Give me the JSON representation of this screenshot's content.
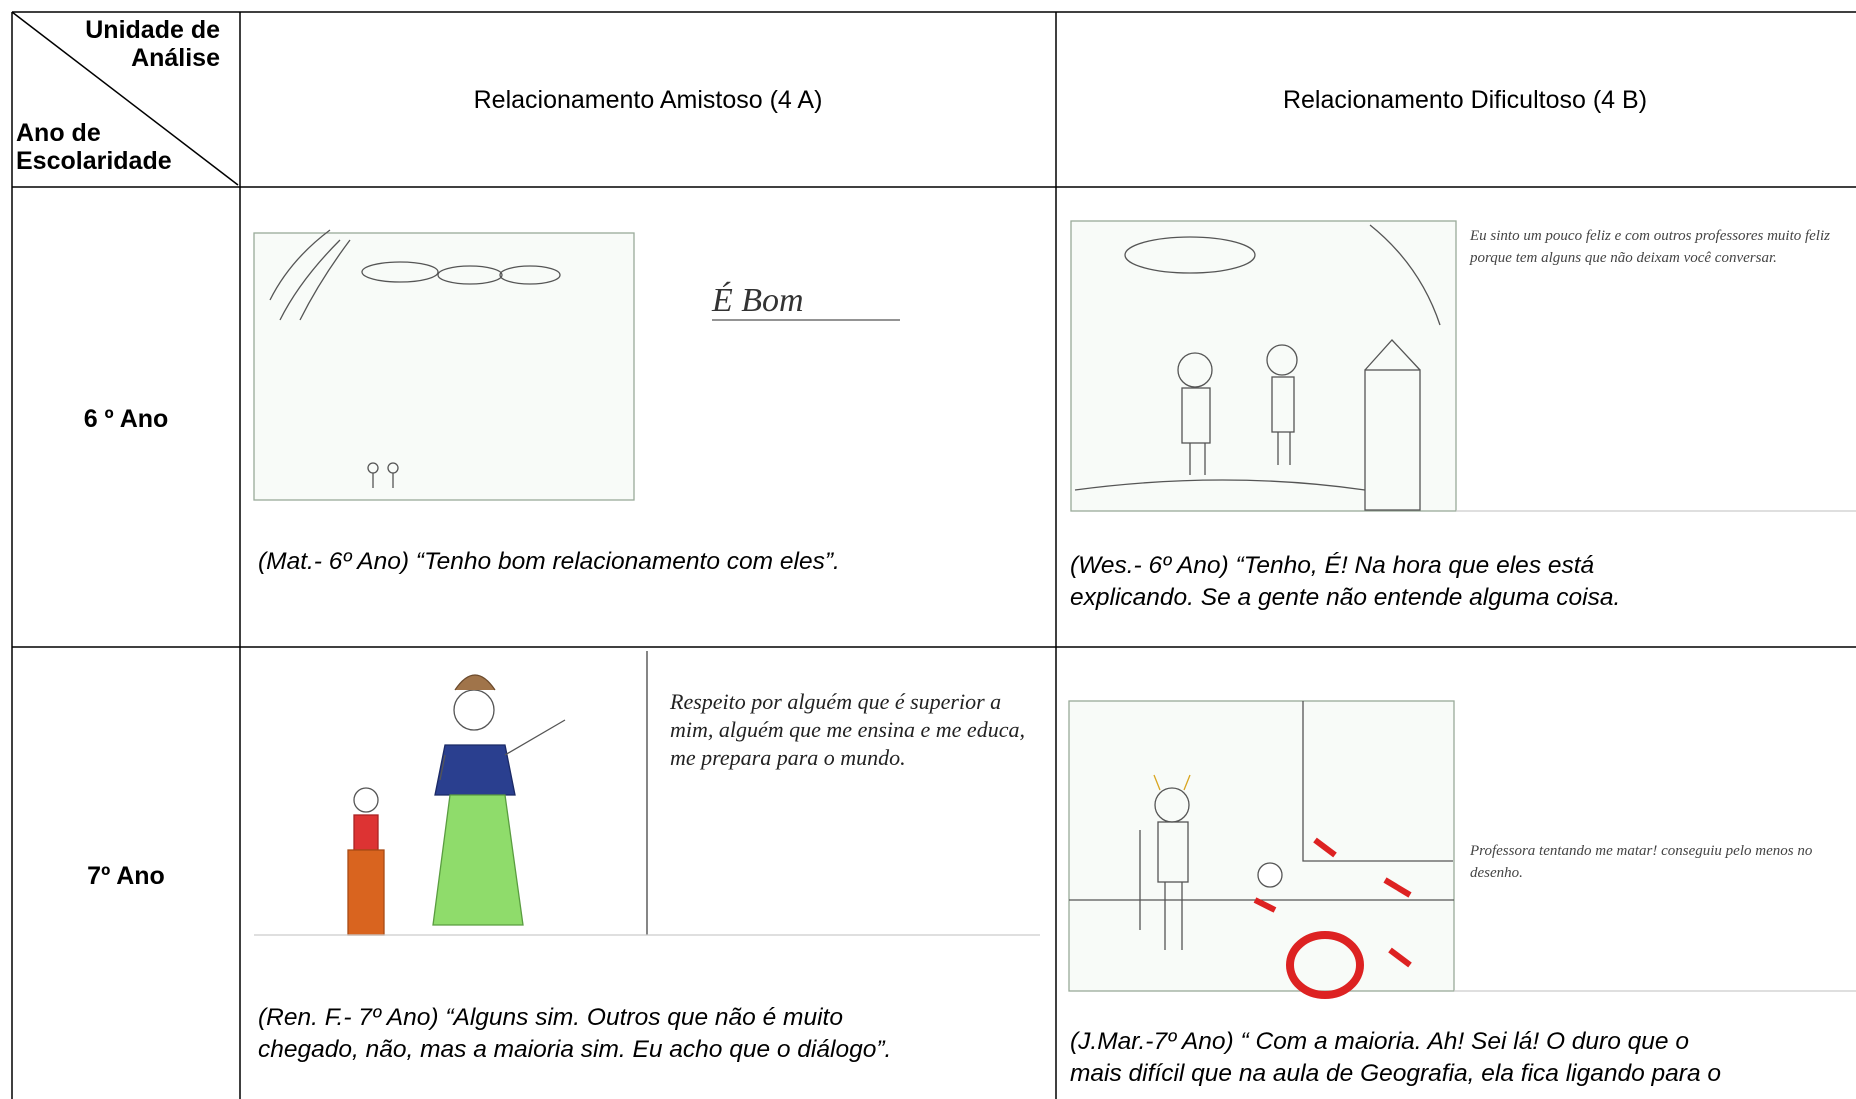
{
  "table": {
    "corner": {
      "top": [
        "Unidade de",
        "Análise"
      ],
      "bottom": [
        "Ano de",
        "Escolaridade"
      ]
    },
    "columns": [
      "Relacionamento Amistoso (4 A)",
      "Relacionamento Dificultoso  (4 B)"
    ],
    "rows": [
      {
        "label": "6 º Ano",
        "cells": [
          {
            "drawing_text": "É Bom",
            "caption": [
              "(Mat.- 6º Ano) “Tenho bom relacionamento com eles”."
            ]
          },
          {
            "drawing_text": "Eu sinto um pouco feliz e com outros professores muito feliz porque tem alguns que não deixam você conversar.",
            "caption": [
              "(Wes.- 6º Ano) “Tenho, É! Na hora que eles está",
              "explicando. Se a gente não entende alguma coisa."
            ]
          }
        ]
      },
      {
        "label": "7º Ano",
        "cells": [
          {
            "drawing_text": "Respeito por alguém que é superior a mim, alguém que me ensina e me educa, me prepara para o mundo.",
            "caption": [
              "(Ren. F.- 7º Ano) “Alguns sim. Outros que não é muito",
              "chegado, não, mas a maioria sim. Eu acho que o diálogo”."
            ]
          },
          {
            "drawing_text": "Professora tentando me matar! conseguiu pelo menos no desenho.",
            "caption": [
              "(J.Mar.-7º Ano) “ Com a maioria. Ah! Sei lá! O duro que o",
              "mais difícil que na aula de Geografia, ela fica ligando para o"
            ]
          }
        ]
      }
    ]
  }
}
